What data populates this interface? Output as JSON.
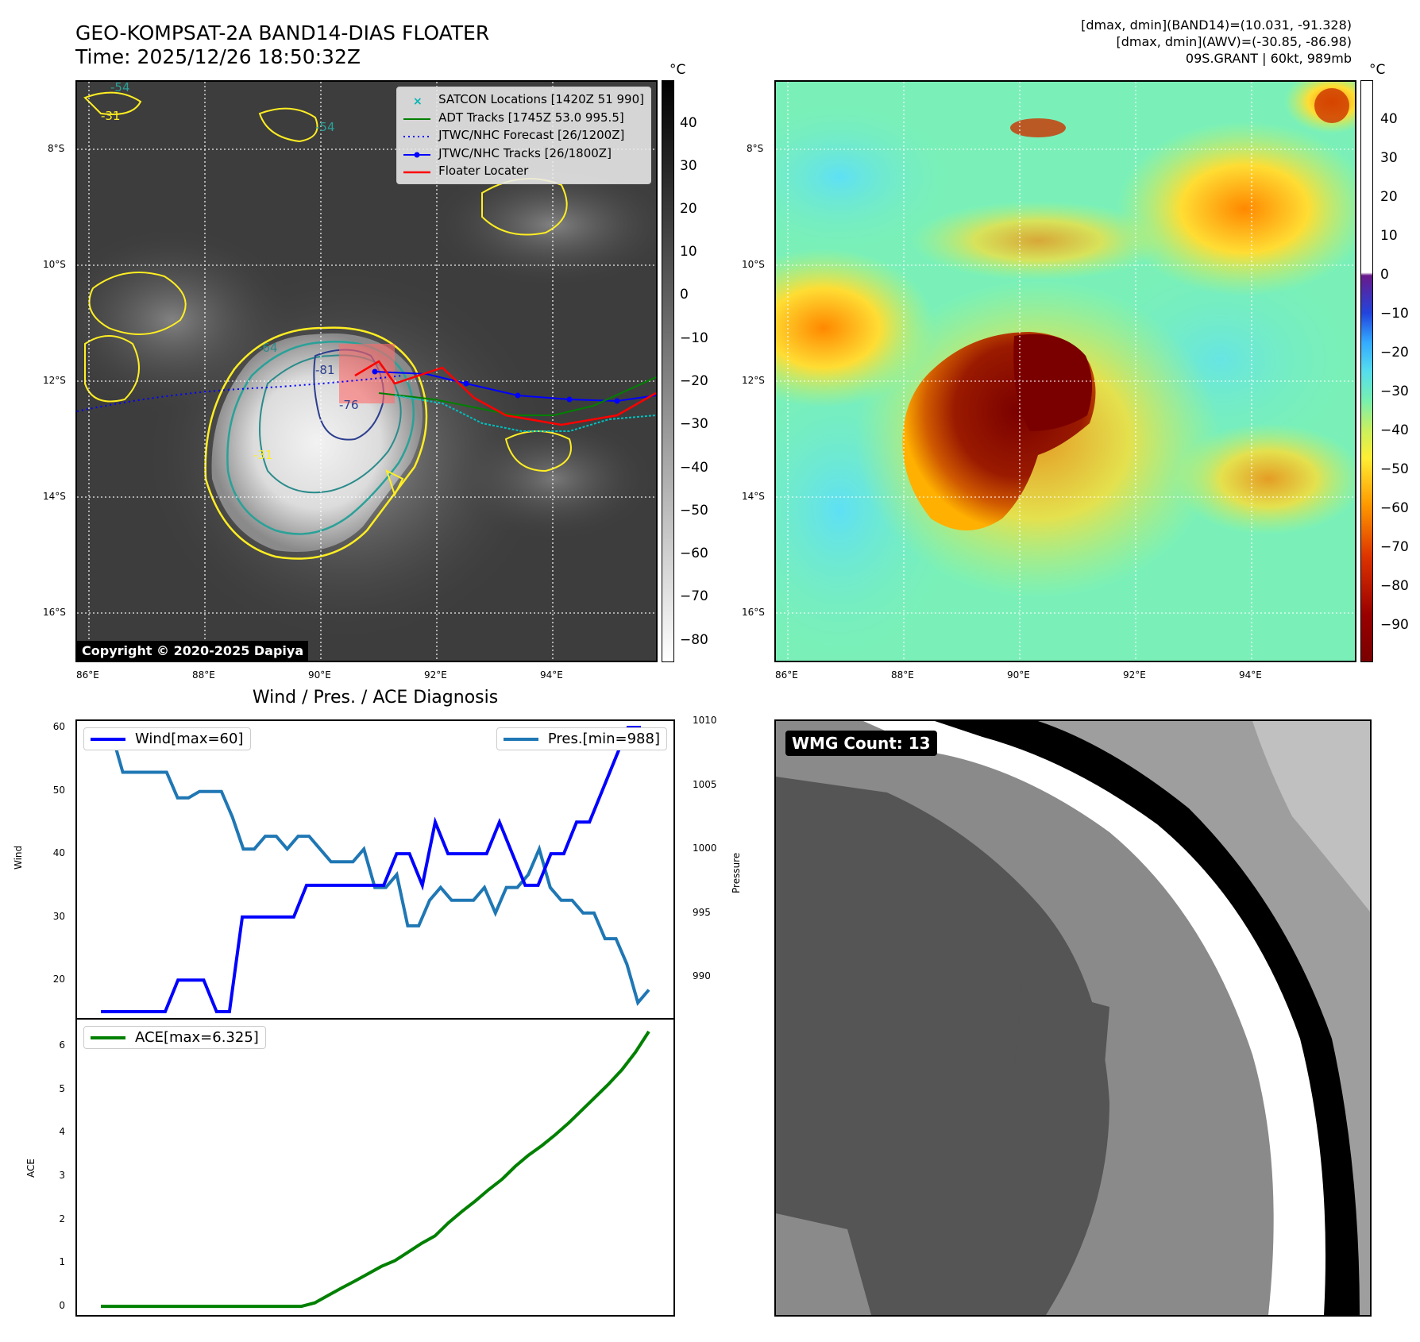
{
  "header": {
    "title_line1": "GEO-KOMPSAT-2A BAND14-DIAS FLOATER",
    "title_line2": "Time: 2025/12/26 18:50:32Z",
    "info_line1": "[dmax, dmin](BAND14)=(10.031, -91.328)",
    "info_line2": "[dmax, dmin](AWV)=(-30.85, -86.98)",
    "info_line3": "09S.GRANT | 60kt, 989mb"
  },
  "map": {
    "lat_labels": [
      "8°S",
      "10°S",
      "12°S",
      "14°S",
      "16°S"
    ],
    "lon_labels": [
      "86°E",
      "88°E",
      "90°E",
      "92°E",
      "94°E"
    ],
    "copyright": "Copyright © 2020-2025 Dapiya",
    "contour_labels": [
      "-54",
      "-31",
      "-81",
      "-64",
      "-76",
      "-54",
      "-31"
    ],
    "legend": [
      {
        "label": "SATCON Locations [1420Z 51 990]",
        "color": "#00b4b4"
      },
      {
        "label": "ADT Tracks [1745Z 53.0 995.5]",
        "color": "#008000"
      },
      {
        "label": "JTWC/NHC Forecast [26/1200Z]",
        "color": "#0000ff"
      },
      {
        "label": "JTWC/NHC Tracks [26/1800Z]",
        "color": "#0000ff"
      },
      {
        "label": "Floater Locater",
        "color": "#ff0000"
      }
    ],
    "colorbar_gray": {
      "unit": "°C",
      "ticks": [
        "40",
        "30",
        "20",
        "10",
        "0",
        "−10",
        "−20",
        "−30",
        "−40",
        "−50",
        "−60",
        "−70",
        "−80"
      ]
    },
    "colorbar_awv": {
      "unit": "°C",
      "ticks": [
        "40",
        "30",
        "20",
        "10",
        "0",
        "−10",
        "−20",
        "−30",
        "−40",
        "−50",
        "−60",
        "−70",
        "−80",
        "−90"
      ]
    }
  },
  "wmg": {
    "badge": "WMG Count: 13"
  },
  "chart_data": [
    {
      "type": "line",
      "title": "Wind / Pres. / ACE Diagnosis",
      "ylabel": "Wind",
      "y2label": "Pressure",
      "ylim": [
        14,
        61
      ],
      "y2lim": [
        986.8,
        1010
      ],
      "yticks": [
        20,
        30,
        40,
        50,
        60
      ],
      "y2ticks": [
        990,
        995,
        1000,
        1005,
        1010
      ],
      "series": [
        {
          "name": "Wind[max=60]",
          "color": "#0000ff",
          "values": [
            15,
            15,
            15,
            15,
            15,
            15,
            20,
            20,
            20,
            15,
            15,
            30,
            30,
            30,
            30,
            30,
            35,
            35,
            35,
            35,
            35,
            35,
            35,
            40,
            40,
            35,
            45,
            40,
            40,
            40,
            40,
            45,
            40,
            35,
            35,
            40,
            40,
            45,
            45,
            50,
            55,
            60,
            60
          ]
        },
        {
          "name": "Pres.[min=988]",
          "color": "#1f77b4",
          "values": [
            1009,
            1009,
            1006,
            1006,
            1006,
            1006,
            1006,
            1004,
            1004,
            1004.5,
            1004.5,
            1004.5,
            1002.5,
            1000,
            1000,
            1001,
            1001,
            1000,
            1001,
            1001,
            1000,
            999,
            999,
            999,
            1000,
            997,
            997,
            998,
            994,
            994,
            996,
            997,
            996,
            996,
            996,
            997,
            995,
            997,
            997,
            998,
            1000,
            997,
            996,
            996,
            995,
            995,
            993,
            993,
            991,
            988,
            989
          ]
        },
        {
          "name": "ACE[max=6.325]",
          "color": "#008000",
          "ylabel": "ACE",
          "ylim": [
            -0.2,
            6.6
          ],
          "yticks": [
            0,
            1,
            2,
            3,
            4,
            5,
            6
          ],
          "values": [
            0,
            0,
            0,
            0,
            0,
            0,
            0,
            0,
            0,
            0,
            0,
            0,
            0,
            0,
            0,
            0,
            0.08,
            0.25,
            0.42,
            0.58,
            0.75,
            0.92,
            1.05,
            1.25,
            1.45,
            1.62,
            1.92,
            2.18,
            2.42,
            2.68,
            2.92,
            3.22,
            3.48,
            3.7,
            3.95,
            4.22,
            4.52,
            4.82,
            5.12,
            5.45,
            5.85,
            6.325
          ]
        }
      ]
    }
  ]
}
